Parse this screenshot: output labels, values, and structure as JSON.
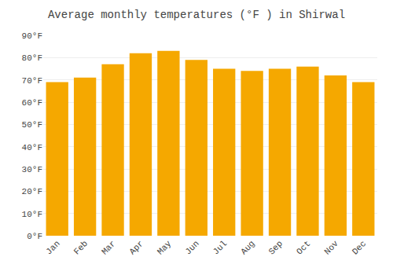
{
  "chart_data": {
    "type": "bar",
    "title": "Average monthly temperatures (°F ) in Shirwal",
    "categories": [
      "Jan",
      "Feb",
      "Mar",
      "Apr",
      "May",
      "Jun",
      "Jul",
      "Aug",
      "Sep",
      "Oct",
      "Nov",
      "Dec"
    ],
    "values": [
      69,
      71,
      77,
      82,
      83,
      79,
      75,
      74,
      75,
      76,
      72,
      69
    ],
    "color": "#F5A800",
    "ylim": [
      0,
      90
    ],
    "yticks": [
      {
        "value": 0,
        "label": "0°F"
      },
      {
        "value": 10,
        "label": "10°F"
      },
      {
        "value": 20,
        "label": "20°F"
      },
      {
        "value": 30,
        "label": "30°F"
      },
      {
        "value": 40,
        "label": "40°F"
      },
      {
        "value": 50,
        "label": "50°F"
      },
      {
        "value": 60,
        "label": "60°F"
      },
      {
        "value": 70,
        "label": "70°F"
      },
      {
        "value": 80,
        "label": "80°F"
      },
      {
        "value": 90,
        "label": "90°F"
      }
    ],
    "grid": true
  }
}
